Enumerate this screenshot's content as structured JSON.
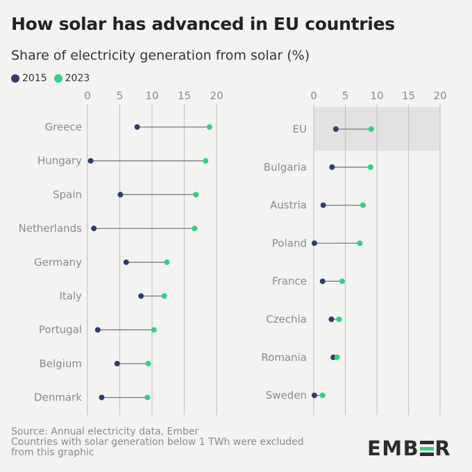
{
  "title": "How solar has advanced in EU countries",
  "subtitle": "Share of electricity generation from solar (%)",
  "legend": [
    {
      "label": "2015",
      "color": "#2c3e6b"
    },
    {
      "label": "2023",
      "color": "#2ed37e"
    }
  ],
  "footer": {
    "line1": "Source: Annual electricity data, Ember",
    "line2": "Countries with solar generation below 1 TWh were excluded",
    "line3": "from this graphic"
  },
  "logo": {
    "left": "EMB",
    "right": "R",
    "mark_color_top": "#2c2c2c",
    "mark_color_mid": "#2ed37e"
  },
  "colors": {
    "y2015": "#2c3e6b",
    "y2023": "#2ed37e",
    "connector": "#7a7a7a",
    "grid": "#c4c4c4",
    "highlight": "#e2e2e2"
  },
  "chart_data": [
    {
      "type": "dumbbell",
      "xlim": [
        0,
        20
      ],
      "xticks": [
        0,
        5,
        10,
        15,
        20
      ],
      "categories": [
        "Greece",
        "Hungary",
        "Spain",
        "Netherlands",
        "Germany",
        "Italy",
        "Portugal",
        "Belgium",
        "Denmark"
      ],
      "series": [
        {
          "name": "2015",
          "values": [
            7.7,
            0.5,
            5.1,
            1.0,
            6.0,
            8.3,
            1.6,
            4.6,
            2.2
          ]
        },
        {
          "name": "2023",
          "values": [
            18.9,
            18.3,
            16.8,
            16.6,
            12.3,
            11.9,
            10.3,
            9.4,
            9.3
          ]
        }
      ]
    },
    {
      "type": "dumbbell",
      "xlim": [
        0,
        20
      ],
      "xticks": [
        0,
        5,
        10,
        15,
        20
      ],
      "categories": [
        "EU",
        "Bulgaria",
        "Austria",
        "Poland",
        "France",
        "Czechia",
        "Romania",
        "Sweden"
      ],
      "highlight": "EU",
      "series": [
        {
          "name": "2015",
          "values": [
            3.5,
            2.9,
            1.5,
            0.1,
            1.4,
            2.8,
            3.1,
            0.1
          ]
        },
        {
          "name": "2023",
          "values": [
            9.1,
            9.0,
            7.8,
            7.3,
            4.5,
            4.0,
            3.7,
            1.4
          ]
        }
      ]
    }
  ]
}
